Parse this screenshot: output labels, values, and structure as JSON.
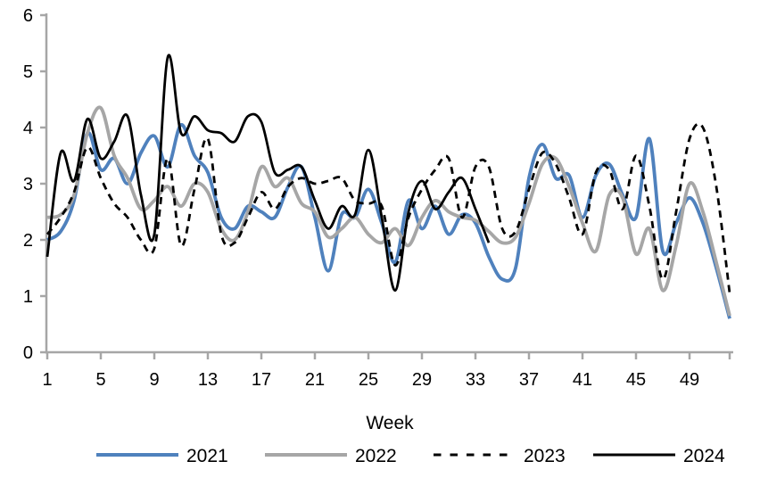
{
  "chart_data": {
    "type": "line",
    "title": "",
    "xlabel": "Week",
    "ylabel": "",
    "xlim": [
      1,
      52
    ],
    "ylim": [
      0,
      6
    ],
    "x_ticks": [
      1,
      5,
      9,
      13,
      17,
      21,
      25,
      29,
      33,
      37,
      41,
      45,
      49
    ],
    "y_ticks": [
      0,
      1,
      2,
      3,
      4,
      5,
      6
    ],
    "grid": false,
    "legend_position": "bottom",
    "axis_color": "#a6a6a6",
    "text_color": "#000000",
    "x": [
      1,
      2,
      3,
      4,
      5,
      6,
      7,
      8,
      9,
      10,
      11,
      12,
      13,
      14,
      15,
      16,
      17,
      18,
      19,
      20,
      21,
      22,
      23,
      24,
      25,
      26,
      27,
      28,
      29,
      30,
      31,
      32,
      33,
      34,
      35,
      36,
      37,
      38,
      39,
      40,
      41,
      42,
      43,
      44,
      45,
      46,
      47,
      48,
      49,
      50,
      51,
      52
    ],
    "series": [
      {
        "name": "2021",
        "color": "#4f81bd",
        "style": "solid",
        "line_width": 3.8,
        "values": [
          2.0,
          2.15,
          2.7,
          3.9,
          3.25,
          3.45,
          3.0,
          3.55,
          3.85,
          3.3,
          4.05,
          3.5,
          3.2,
          2.4,
          2.2,
          2.6,
          2.5,
          2.4,
          2.95,
          3.3,
          2.4,
          1.45,
          2.45,
          2.4,
          2.9,
          2.3,
          1.6,
          2.7,
          2.2,
          2.6,
          2.1,
          2.45,
          2.3,
          1.7,
          1.3,
          1.5,
          3.1,
          3.7,
          3.1,
          3.15,
          2.4,
          3.15,
          3.35,
          2.8,
          2.4,
          3.8,
          1.8,
          2.3,
          2.75,
          2.3,
          1.5,
          0.6
        ]
      },
      {
        "name": "2022",
        "color": "#a6a6a6",
        "style": "solid",
        "line_width": 3.8,
        "values": [
          2.4,
          2.45,
          2.8,
          3.9,
          4.35,
          3.5,
          3.1,
          2.55,
          2.7,
          2.95,
          2.6,
          3.0,
          2.85,
          2.2,
          2.0,
          2.5,
          3.3,
          2.95,
          3.1,
          2.65,
          2.5,
          2.05,
          2.2,
          2.4,
          2.1,
          1.95,
          2.2,
          1.9,
          2.4,
          2.7,
          2.5,
          2.4,
          2.35,
          2.15,
          1.95,
          2.05,
          2.65,
          3.35,
          3.45,
          2.95,
          2.3,
          1.8,
          2.8,
          2.75,
          1.75,
          2.2,
          1.1,
          1.9,
          3.0,
          2.5,
          1.6,
          0.65
        ]
      },
      {
        "name": "2023",
        "color": "#000000",
        "style": "dashed",
        "line_width": 2.8,
        "values": [
          2.1,
          2.4,
          2.85,
          3.65,
          3.1,
          2.65,
          2.4,
          2.0,
          1.85,
          3.45,
          1.9,
          2.9,
          3.8,
          2.1,
          1.95,
          2.4,
          2.85,
          2.55,
          2.95,
          3.1,
          3.0,
          3.05,
          3.1,
          2.7,
          2.65,
          2.6,
          1.55,
          2.4,
          2.9,
          3.25,
          3.45,
          2.4,
          3.3,
          3.3,
          2.2,
          2.15,
          2.9,
          3.55,
          3.35,
          2.75,
          2.1,
          3.2,
          3.25,
          2.55,
          3.5,
          2.6,
          1.3,
          2.5,
          3.8,
          4.0,
          2.95,
          1.05
        ]
      },
      {
        "name": "2024",
        "color": "#000000",
        "style": "solid",
        "line_width": 2.8,
        "values": [
          1.7,
          3.55,
          3.05,
          4.15,
          3.45,
          3.75,
          4.2,
          2.8,
          2.1,
          5.25,
          3.9,
          4.2,
          3.95,
          3.9,
          3.75,
          4.2,
          4.1,
          3.2,
          3.25,
          3.3,
          2.7,
          2.2,
          2.6,
          2.45,
          3.6,
          2.4,
          1.1,
          2.5,
          3.05,
          2.55,
          2.85,
          3.1,
          2.55,
          1.95,
          null,
          null,
          null,
          null,
          null,
          null,
          null,
          null,
          null,
          null,
          null,
          null,
          null,
          null,
          null,
          null,
          null,
          null
        ]
      }
    ]
  },
  "legend": {
    "items": [
      {
        "label": "2021"
      },
      {
        "label": "2022"
      },
      {
        "label": "2023"
      },
      {
        "label": "2024"
      }
    ]
  }
}
